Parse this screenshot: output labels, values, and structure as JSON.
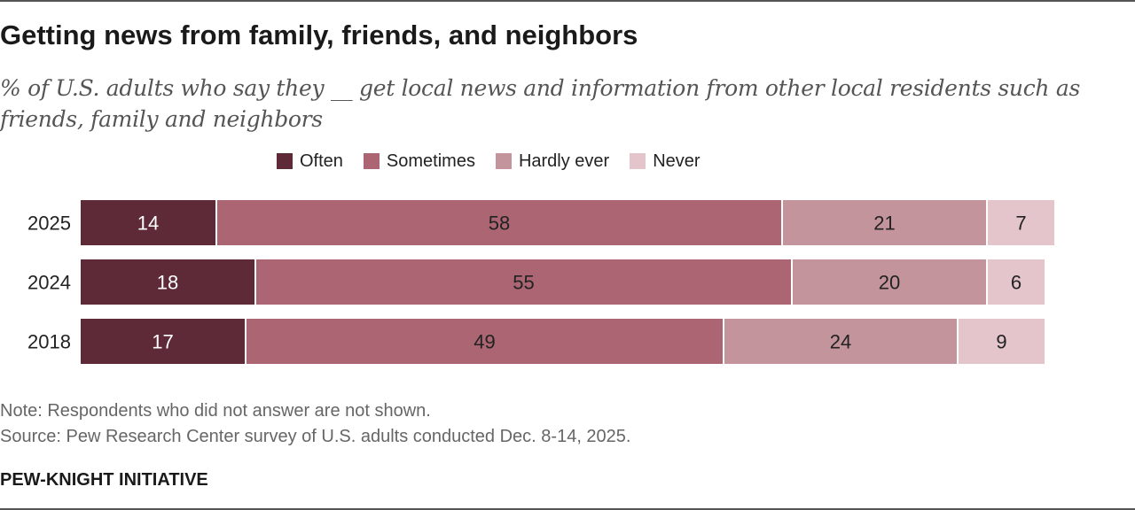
{
  "title": "Getting news from family, friends, and neighbors",
  "subtitle": "% of U.S. adults who say they __ get local news and information from other local residents such as friends, family and neighbors",
  "note": "Note: Respondents who did not answer are not shown.",
  "source": "Source: Pew Research Center survey of U.S. adults conducted Dec. 8-14, 2025.",
  "brand": "PEW-KNIGHT INITIATIVE",
  "colors": {
    "often": "#5e2a38",
    "sometimes": "#ac6573",
    "hardly_ever": "#c4949c",
    "never": "#e3c5cb",
    "label_light": "#ffffff",
    "label_dark": "#222222"
  },
  "chart_data": {
    "type": "bar",
    "orientation": "horizontal",
    "stacked": true,
    "title": "Getting news from family, friends, and neighbors",
    "xlabel": "",
    "ylabel": "",
    "xlim": [
      0,
      100
    ],
    "grid": false,
    "legend_position": "top",
    "categories": [
      "2025",
      "2024",
      "2018"
    ],
    "series": [
      {
        "name": "Often",
        "color": "#5e2a38",
        "label_color": "#ffffff",
        "values": [
          14,
          18,
          17
        ]
      },
      {
        "name": "Sometimes",
        "color": "#ac6573",
        "label_color": "#222222",
        "values": [
          58,
          55,
          49
        ]
      },
      {
        "name": "Hardly ever",
        "color": "#c4949c",
        "label_color": "#222222",
        "values": [
          21,
          20,
          24
        ]
      },
      {
        "name": "Never",
        "color": "#e3c5cb",
        "label_color": "#222222",
        "values": [
          7,
          6,
          9
        ]
      }
    ]
  }
}
